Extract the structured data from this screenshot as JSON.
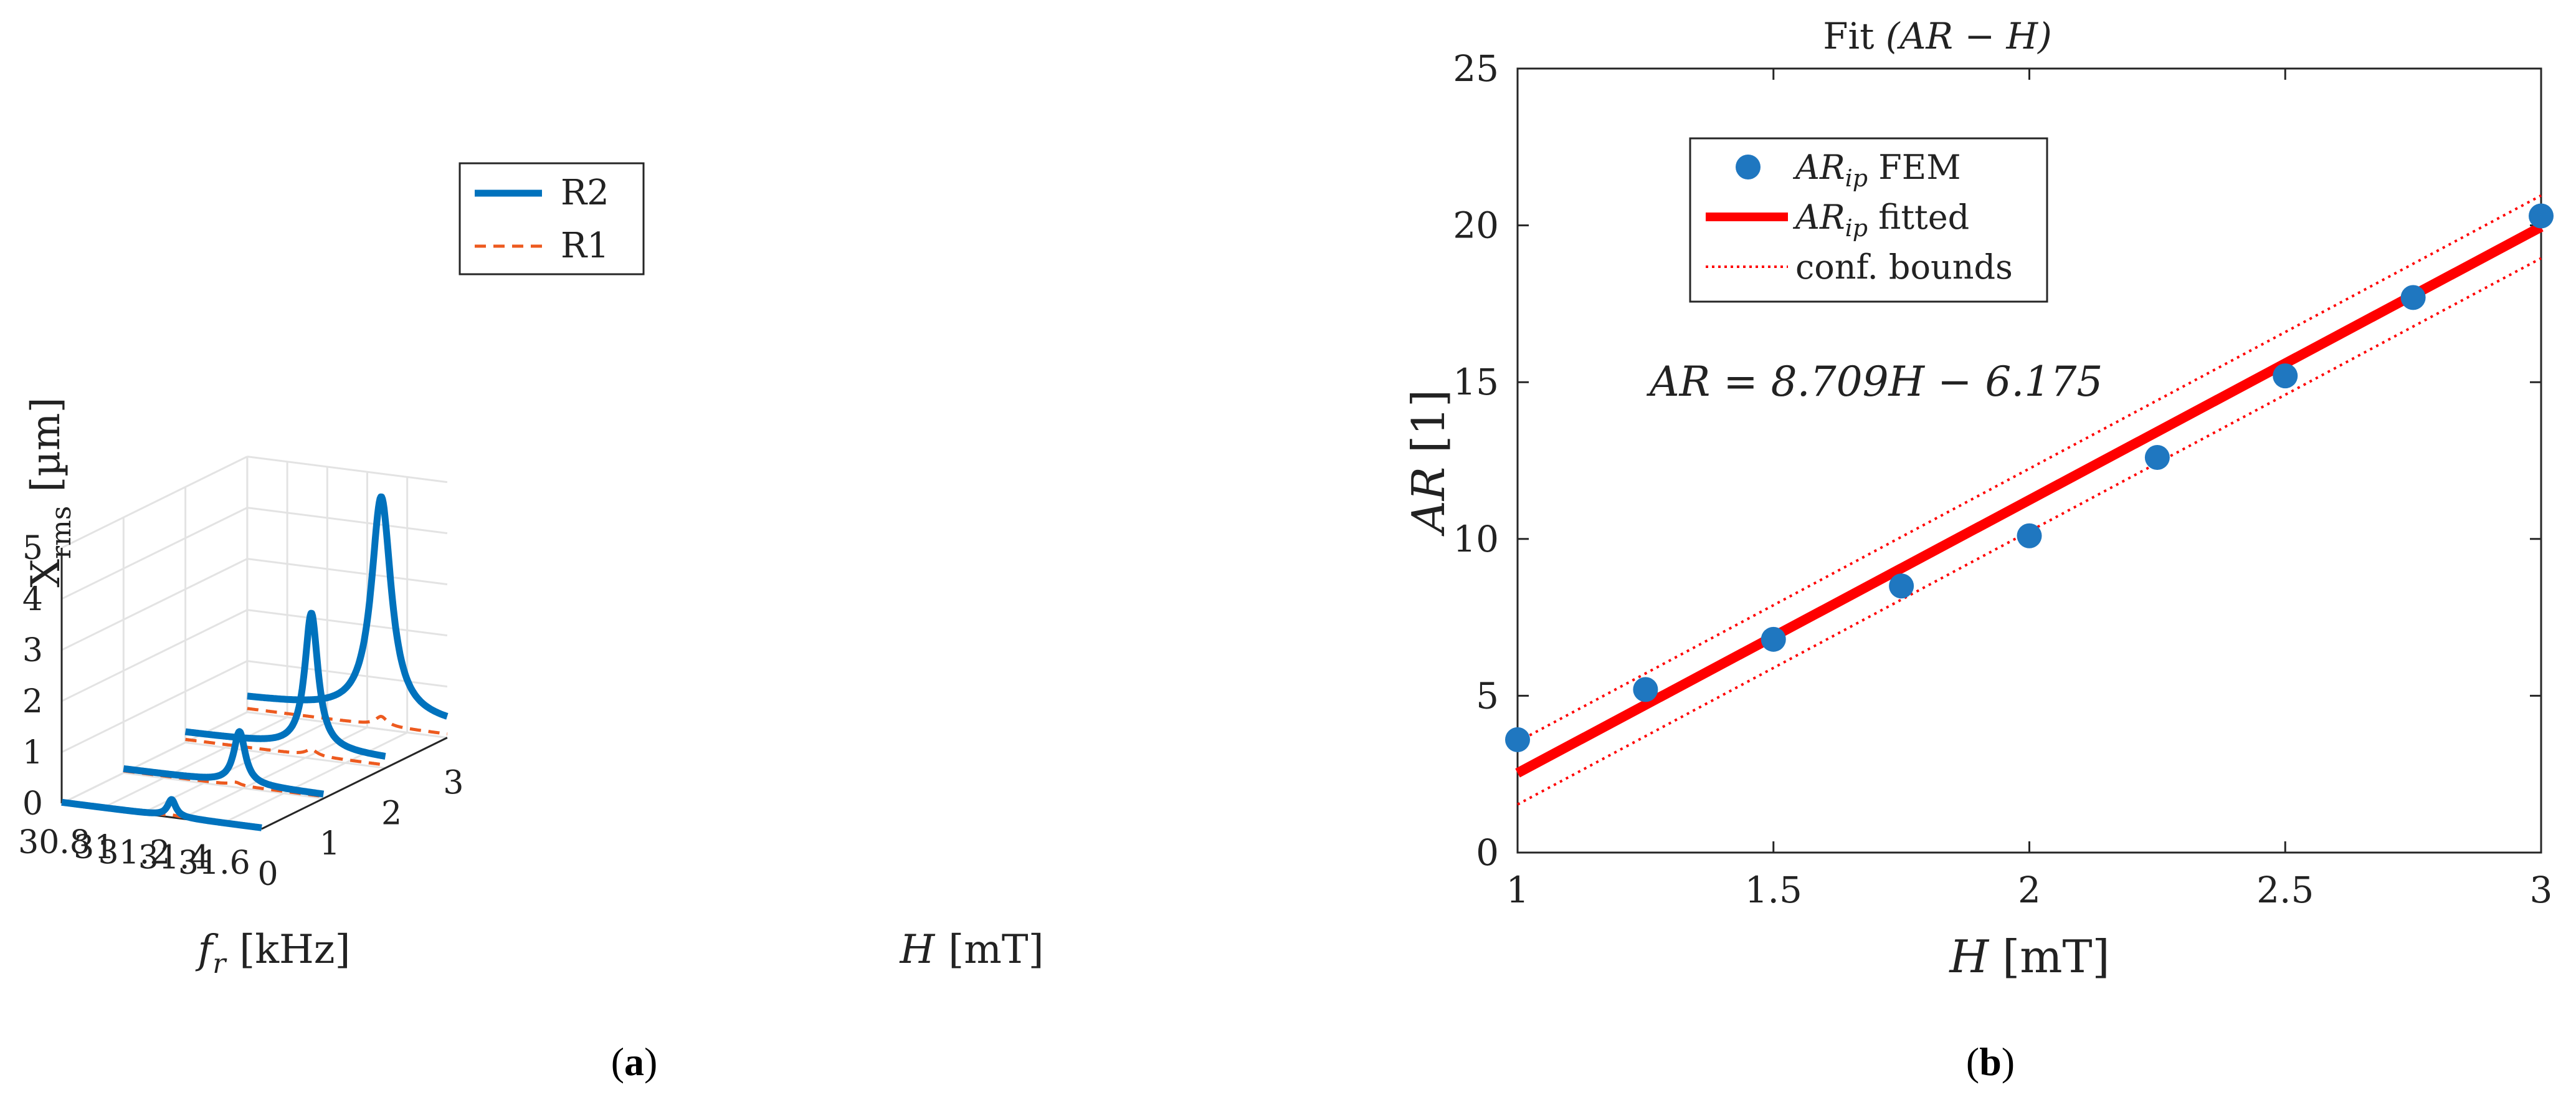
{
  "chart_data": [
    {
      "panel": "(a)",
      "type": "line",
      "projection": "3d-waterfall",
      "title": "",
      "zlabel_main": "X",
      "zlabel_sub": "rms",
      "zlabel_unit": "[µm]",
      "xlabel_main": "f",
      "xlabel_sub": "r",
      "xlabel_unit": "[kHz]",
      "ylabel_main": "H",
      "ylabel_unit": "[mT]",
      "x_ticks": [
        "30.8",
        "31",
        "31.2",
        "31.4",
        "31.6"
      ],
      "x_tick_values": [
        30.8,
        31.0,
        31.2,
        31.4,
        31.6
      ],
      "y_ticks": [
        "0",
        "1",
        "2",
        "3"
      ],
      "y_tick_values": [
        0,
        1,
        2,
        3
      ],
      "z_ticks": [
        "0",
        "1",
        "2",
        "3",
        "4",
        "5"
      ],
      "z_tick_values": [
        0,
        1,
        2,
        3,
        4,
        5
      ],
      "xlim": [
        30.8,
        31.8
      ],
      "ylim": [
        0,
        3
      ],
      "zlim": [
        0,
        5
      ],
      "grid": true,
      "legend": {
        "position": "top-center",
        "entries": [
          {
            "label": "R2",
            "color": "#0072BD",
            "style": "solid"
          },
          {
            "label": "R1",
            "color": "#ED5A1F",
            "style": "dashed"
          }
        ]
      },
      "series": [
        {
          "name": "R2",
          "H": 0.0,
          "f_peak": 31.35,
          "peak": 0.35,
          "base": 0.02,
          "width": 0.025
        },
        {
          "name": "R2",
          "H": 1.0,
          "f_peak": 31.38,
          "peak": 1.1,
          "base": 0.08,
          "width": 0.035
        },
        {
          "name": "R2",
          "H": 2.0,
          "f_peak": 31.43,
          "peak": 2.85,
          "base": 0.2,
          "width": 0.04
        },
        {
          "name": "R2",
          "H": 3.0,
          "f_peak": 31.47,
          "peak": 4.55,
          "base": 0.28,
          "width": 0.06
        },
        {
          "name": "R1",
          "H": 0.0,
          "f_peak": 31.35,
          "peak": 0.05,
          "base": 0.03,
          "width": 0.03
        },
        {
          "name": "R1",
          "H": 1.0,
          "f_peak": 31.36,
          "peak": 0.1,
          "base": 0.04,
          "width": 0.03
        },
        {
          "name": "R1",
          "H": 2.0,
          "f_peak": 31.43,
          "peak": 0.18,
          "base": 0.06,
          "width": 0.035
        },
        {
          "name": "R1",
          "H": 3.0,
          "f_peak": 31.47,
          "peak": 0.25,
          "base": 0.07,
          "width": 0.035
        }
      ]
    },
    {
      "panel": "(b)",
      "type": "scatter",
      "title_prefix": "Fit ",
      "title_math": "(AR − H)",
      "xlabel_main": "H",
      "xlabel_unit": "[mT]",
      "ylabel_main": "AR",
      "ylabel_unit": "[1]",
      "xlim": [
        1,
        3
      ],
      "ylim": [
        0,
        25
      ],
      "x_ticks": [
        "1",
        "1.5",
        "2",
        "2.5",
        "3"
      ],
      "x_tick_values": [
        1,
        1.5,
        2,
        2.5,
        3
      ],
      "y_ticks": [
        "0",
        "5",
        "10",
        "15",
        "20",
        "25"
      ],
      "y_tick_values": [
        0,
        5,
        10,
        15,
        20,
        25
      ],
      "grid": false,
      "equation": "AR = 8.709H − 6.175",
      "fit": {
        "slope": 8.709,
        "intercept": -6.175,
        "conf_offset": 1.0
      },
      "legend": {
        "position": "top-left",
        "entries": [
          {
            "label_main": "AR",
            "label_sub": "ip",
            "label_rest": " FEM",
            "style": "marker",
            "color": "#1F77C0"
          },
          {
            "label_main": "AR",
            "label_sub": "ip",
            "label_rest": " fitted",
            "style": "line",
            "color": "#FF0000"
          },
          {
            "label_main": "",
            "label_sub": "",
            "label_rest": "conf. bounds",
            "style": "dotted",
            "color": "#FF0000"
          }
        ]
      },
      "series": [
        {
          "name": "AR_ip FEM",
          "x": [
            1.0,
            1.25,
            1.5,
            1.75,
            2.0,
            2.25,
            2.5,
            2.75,
            3.0
          ],
          "y": [
            3.6,
            5.2,
            6.8,
            8.5,
            10.1,
            12.6,
            15.2,
            17.7,
            20.3
          ]
        }
      ]
    }
  ],
  "captions": {
    "a_letter": "a",
    "b_letter": "b",
    "open": "(",
    "close": ")"
  },
  "colors": {
    "r2": "#0072BD",
    "r1": "#ED5A1F",
    "fit": "#FF0000",
    "points": "#1F77C0",
    "grid": "#E3E3E3",
    "axis": "#262626"
  }
}
